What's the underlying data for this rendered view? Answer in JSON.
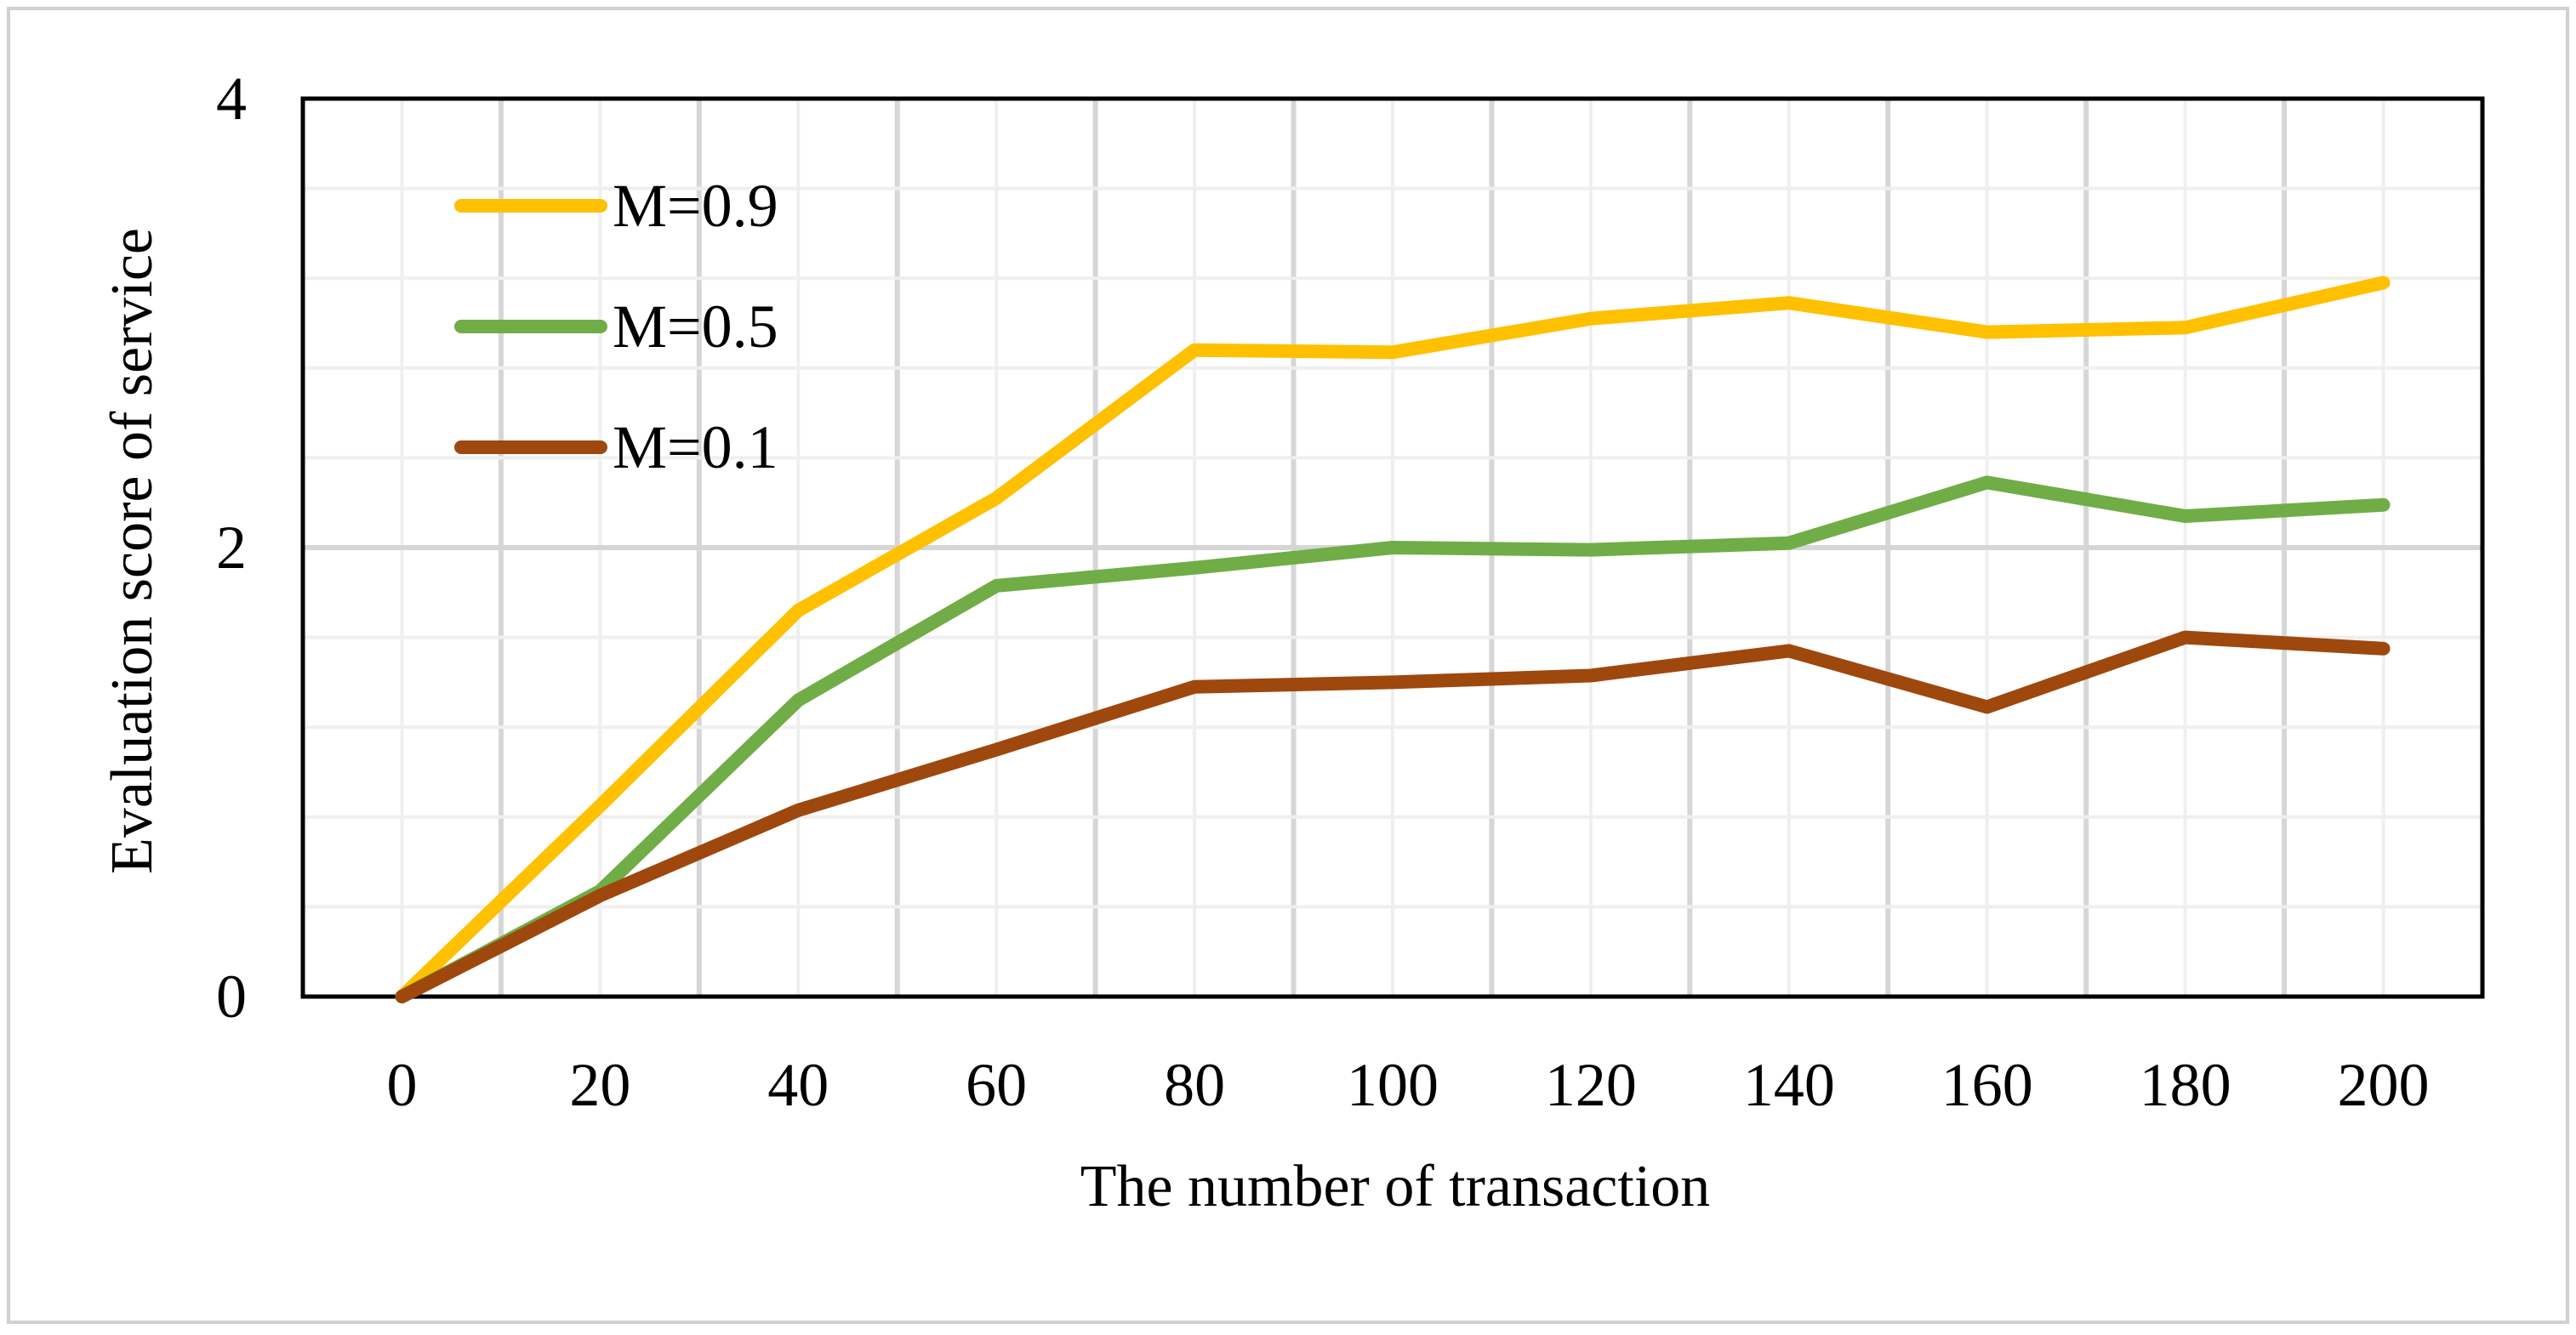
{
  "chart_data": {
    "type": "line",
    "title": "",
    "xlabel": "The number of transaction",
    "ylabel": "Evaluation score of service",
    "x": [
      0,
      20,
      40,
      60,
      80,
      100,
      120,
      140,
      160,
      180,
      200
    ],
    "x_tick_labels": [
      "0",
      "20",
      "40",
      "60",
      "80",
      "100",
      "120",
      "140",
      "160",
      "180",
      "200"
    ],
    "y_tick_labels": [
      "0",
      "2",
      "4"
    ],
    "xlim": [
      -10,
      210
    ],
    "ylim": [
      0,
      4
    ],
    "y_major_ticks": [
      0,
      2,
      4
    ],
    "y_minor_step": 0.4,
    "x_minor_step": 10,
    "grid": true,
    "legend_position": "top-left",
    "series": [
      {
        "name": "M=0.9",
        "color": "#FFC000",
        "values": [
          0.0,
          0.85,
          1.72,
          2.22,
          2.88,
          2.87,
          3.02,
          3.09,
          2.96,
          2.98,
          3.18
        ]
      },
      {
        "name": "M=0.5",
        "color": "#70AD47",
        "values": [
          0.0,
          0.47,
          1.32,
          1.83,
          1.91,
          2.0,
          1.99,
          2.02,
          2.29,
          2.14,
          2.19
        ]
      },
      {
        "name": "M=0.1",
        "color": "#9E480E",
        "values": [
          0.0,
          0.45,
          0.83,
          1.1,
          1.38,
          1.4,
          1.43,
          1.54,
          1.29,
          1.6,
          1.55
        ]
      }
    ]
  }
}
